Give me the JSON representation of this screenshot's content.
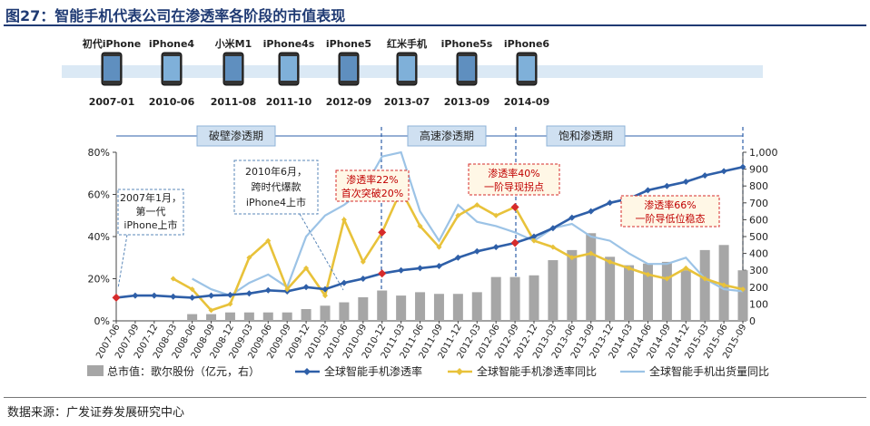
{
  "title": "图27：智能手机代表公司在渗透率各阶段的市值表现",
  "source": "数据来源：广发证券发展研究中心",
  "timeline": [
    {
      "name": "初代iPhone",
      "date": "2007-01"
    },
    {
      "name": "iPhone4",
      "date": "2010-06"
    },
    {
      "name": "小米M1",
      "date": "2011-08"
    },
    {
      "name": "iPhone4s",
      "date": "2011-10"
    },
    {
      "name": "iPhone5",
      "date": "2012-09"
    },
    {
      "name": "红米手机",
      "date": "2013-07"
    },
    {
      "name": "iPhone5s",
      "date": "2013-09"
    },
    {
      "name": "iPhone6",
      "date": "2014-09"
    }
  ],
  "phases": [
    "破壁渗透期",
    "高速渗透期",
    "饱和渗透期"
  ],
  "annotations": {
    "a1": "2007年1月，\n第一代\niPhone上市",
    "a2": "2010年6月，\n跨时代爆款\niPhone4上市",
    "a3": "渗透率22%\n首次突破20%",
    "a4": "渗透率40%\n一阶导现拐点",
    "a5": "渗透率66%\n一阶导低位稳态"
  },
  "chart_data": {
    "type": "bar",
    "x": [
      "2007-06",
      "2007-09",
      "2007-12",
      "2008-03",
      "2008-06",
      "2008-09",
      "2008-12",
      "2009-03",
      "2009-06",
      "2009-09",
      "2009-12",
      "2010-03",
      "2010-06",
      "2010-09",
      "2010-12",
      "2011-03",
      "2011-06",
      "2011-09",
      "2011-12",
      "2012-03",
      "2012-06",
      "2012-09",
      "2012-12",
      "2013-03",
      "2013-06",
      "2013-09",
      "2013-12",
      "2014-03",
      "2014-06",
      "2014-09",
      "2014-12",
      "2015-03",
      "2015-06",
      "2015-09"
    ],
    "ylim_left": [
      0,
      0.8
    ],
    "yticks_left": [
      "0%",
      "20%",
      "40%",
      "60%",
      "80%"
    ],
    "ylim_right": [
      0,
      1000
    ],
    "yticks_right": [
      "0",
      "100",
      "200",
      "300",
      "400",
      "500",
      "600",
      "700",
      "800",
      "900",
      "1,000"
    ],
    "series": [
      {
        "name": "总市值：歌尔股份（亿元，右）",
        "type": "bar",
        "axis": "right",
        "color": "#a6a6a6",
        "values": [
          null,
          null,
          null,
          null,
          40,
          40,
          50,
          50,
          50,
          50,
          70,
          90,
          110,
          140,
          180,
          150,
          170,
          160,
          160,
          170,
          260,
          260,
          270,
          360,
          420,
          520,
          380,
          330,
          340,
          350,
          300,
          420,
          450,
          300
        ]
      },
      {
        "name": "全球智能手机渗透率",
        "type": "line",
        "axis": "left",
        "color": "#2e5fa8",
        "values": [
          0.11,
          0.12,
          0.12,
          0.115,
          0.11,
          0.12,
          0.123,
          0.13,
          0.145,
          0.14,
          0.16,
          0.15,
          0.18,
          0.2,
          0.225,
          0.24,
          0.25,
          0.26,
          0.3,
          0.33,
          0.35,
          0.37,
          0.4,
          0.44,
          0.49,
          0.52,
          0.56,
          0.58,
          0.62,
          0.64,
          0.66,
          0.69,
          0.71,
          0.73
        ]
      },
      {
        "name": "全球智能手机渗透率同比",
        "type": "line",
        "axis": "left",
        "color": "#e8c23a",
        "values": [
          null,
          null,
          null,
          0.2,
          0.15,
          0.05,
          0.08,
          0.3,
          0.38,
          0.15,
          0.25,
          0.12,
          0.48,
          0.28,
          0.42,
          0.62,
          0.45,
          0.35,
          0.5,
          0.55,
          0.5,
          0.54,
          0.38,
          0.35,
          0.3,
          0.32,
          0.28,
          0.25,
          0.22,
          0.2,
          0.25,
          0.2,
          0.17,
          0.15
        ]
      },
      {
        "name": "全球智能手机出货量同比",
        "type": "line",
        "axis": "left",
        "color": "#9cc3e6",
        "values": [
          null,
          null,
          null,
          null,
          0.2,
          0.15,
          0.12,
          0.18,
          0.22,
          0.16,
          0.4,
          0.5,
          0.55,
          0.62,
          0.78,
          0.8,
          0.52,
          0.38,
          0.55,
          0.47,
          0.45,
          0.42,
          0.38,
          0.44,
          0.46,
          0.4,
          0.38,
          0.32,
          0.27,
          0.27,
          0.3,
          0.2,
          0.15,
          0.14
        ]
      }
    ]
  }
}
